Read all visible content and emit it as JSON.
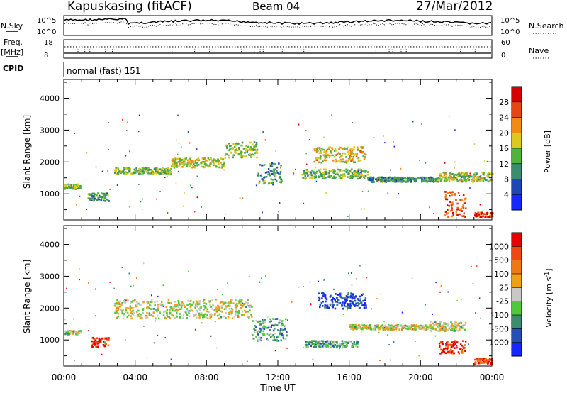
{
  "header": {
    "title": "Kapuskasing (fitACF)",
    "beam": "Beam 04",
    "date": "27/Mar/2012"
  },
  "noise_panel": {
    "left_label": "N.Sky",
    "right_label": "N.Search",
    "ticks": [
      "10^5",
      "10^0"
    ]
  },
  "freq_panel": {
    "left_label_line1": "Freq.",
    "left_label_line2": "[MHz]",
    "left_ticks": [
      "18",
      "8"
    ],
    "right_label": "Nave",
    "right_ticks": [
      "60",
      "0"
    ]
  },
  "cpid_panel": {
    "label": "CPID",
    "mode": "normal (fast) 151"
  },
  "chart_data": [
    {
      "type": "heatmap",
      "name": "power",
      "ylabel": "Slant Range [km]",
      "ylim": [
        180,
        4590
      ],
      "yticks": [
        1000,
        2000,
        3000,
        4000
      ],
      "xlim": [
        0,
        24
      ],
      "xticks": [
        "00:00",
        "04:00",
        "08:00",
        "12:00",
        "16:00",
        "20:00",
        "00:00"
      ],
      "colorbar": {
        "label": "Power [dB]",
        "ticks": [
          "4",
          "8",
          "12",
          "16",
          "20",
          "24",
          "28"
        ],
        "colors": [
          "#1428ff",
          "#1e46b4",
          "#3c8c6e",
          "#50b43c",
          "#dcc81e",
          "#f08c14",
          "#e64614",
          "#d70000"
        ]
      },
      "echo_bands": [
        {
          "t": [
            0.0,
            0.9
          ],
          "range": [
            1180,
            1330
          ],
          "level": 0.45
        },
        {
          "t": [
            1.3,
            2.5
          ],
          "range": [
            800,
            1050
          ],
          "level": 0.35
        },
        {
          "t": [
            2.8,
            6.0
          ],
          "range": [
            1650,
            1850
          ],
          "level": 0.45
        },
        {
          "t": [
            6.0,
            9.0
          ],
          "range": [
            1850,
            2150
          ],
          "level": 0.55
        },
        {
          "t": [
            9.0,
            10.8
          ],
          "range": [
            2150,
            2650
          ],
          "level": 0.45
        },
        {
          "t": [
            10.8,
            12.2
          ],
          "range": [
            1300,
            2000
          ],
          "level": 0.35
        },
        {
          "t": [
            13.3,
            17.0
          ],
          "range": [
            1500,
            1800
          ],
          "level": 0.45
        },
        {
          "t": [
            14.0,
            16.9
          ],
          "range": [
            2000,
            2500
          ],
          "level": 0.6
        },
        {
          "t": [
            17.0,
            21.0
          ],
          "range": [
            1400,
            1550
          ],
          "level": 0.35
        },
        {
          "t": [
            21.0,
            24.0
          ],
          "range": [
            1400,
            1700
          ],
          "level": 0.5
        },
        {
          "t": [
            21.3,
            22.5
          ],
          "range": [
            300,
            1100
          ],
          "level": 0.8
        },
        {
          "t": [
            23.0,
            24.0
          ],
          "range": [
            280,
            450
          ],
          "level": 0.85
        }
      ]
    },
    {
      "type": "heatmap",
      "name": "velocity",
      "ylabel": "Slant Range [km]",
      "ylim": [
        180,
        4590
      ],
      "yticks": [
        1000,
        2000,
        3000,
        4000
      ],
      "xlim": [
        0,
        24
      ],
      "xticks": [
        "00:00",
        "04:00",
        "08:00",
        "12:00",
        "16:00",
        "20:00",
        "00:00"
      ],
      "xlabel": "Time UT",
      "colorbar": {
        "label": "Velocity [m s^-1]",
        "ticks": [
          "1000",
          "500",
          "100",
          "25",
          "-25",
          "-100",
          "-500",
          "-1000"
        ],
        "colors": [
          "#1428ff",
          "#2850b4",
          "#3c8c6e",
          "#50c83c",
          "#c8c8c8",
          "#f0a014",
          "#f07814",
          "#f04614",
          "#e60000"
        ]
      },
      "echo_bands": [
        {
          "t": [
            0.0,
            0.9
          ],
          "range": [
            1200,
            1320
          ],
          "level": 0.45
        },
        {
          "t": [
            1.5,
            2.5
          ],
          "range": [
            800,
            1100
          ],
          "level": 0.9
        },
        {
          "t": [
            2.8,
            10.5
          ],
          "range": [
            1700,
            2300
          ],
          "level": 0.5
        },
        {
          "t": [
            10.5,
            12.5
          ],
          "range": [
            1000,
            1700
          ],
          "level": 0.3
        },
        {
          "t": [
            13.5,
            16.5
          ],
          "range": [
            800,
            1000
          ],
          "level": 0.35
        },
        {
          "t": [
            14.2,
            16.9
          ],
          "range": [
            2000,
            2500
          ],
          "level": 0.1
        },
        {
          "t": [
            16.0,
            20.5
          ],
          "range": [
            1350,
            1500
          ],
          "level": 0.5
        },
        {
          "t": [
            20.5,
            22.5
          ],
          "range": [
            1300,
            1600
          ],
          "level": 0.5
        },
        {
          "t": [
            21.0,
            22.5
          ],
          "range": [
            600,
            1000
          ],
          "level": 0.9
        },
        {
          "t": [
            23.0,
            24.0
          ],
          "range": [
            280,
            450
          ],
          "level": 0.85
        }
      ]
    }
  ]
}
